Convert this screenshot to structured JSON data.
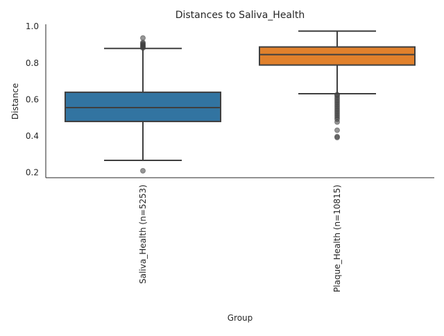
{
  "chart_data": {
    "type": "box",
    "title": "Distances to Saliva_Health",
    "xlabel": "Group",
    "ylabel": "Distance",
    "ylim": [
      0.17,
      1.01
    ],
    "yticks": [
      0.2,
      0.4,
      0.6,
      0.8,
      1.0
    ],
    "ytick_labels": [
      "0.2",
      "0.4",
      "0.6",
      "0.8",
      "1.0"
    ],
    "grid": false,
    "categories": [
      "Saliva_Health (n=5253)",
      "Plaque_Health (n=10815)"
    ],
    "boxes": [
      {
        "name": "Saliva_Health (n=5253)",
        "color": "#3274a1",
        "whisker_low": 0.265,
        "q1": 0.478,
        "median": 0.554,
        "q3": 0.638,
        "whisker_high": 0.878,
        "outliers": [
          0.208,
          0.88,
          0.885,
          0.89,
          0.895,
          0.9,
          0.905,
          0.91,
          0.935
        ]
      },
      {
        "name": "Plaque_Health (n=10815)",
        "color": "#e1812c",
        "whisker_low": 0.63,
        "q1": 0.787,
        "median": 0.844,
        "q3": 0.886,
        "whisker_high": 0.973,
        "outliers": [
          0.625,
          0.62,
          0.61,
          0.6,
          0.59,
          0.58,
          0.57,
          0.56,
          0.55,
          0.54,
          0.53,
          0.52,
          0.51,
          0.5,
          0.49,
          0.475,
          0.43,
          0.395,
          0.39
        ]
      }
    ]
  }
}
